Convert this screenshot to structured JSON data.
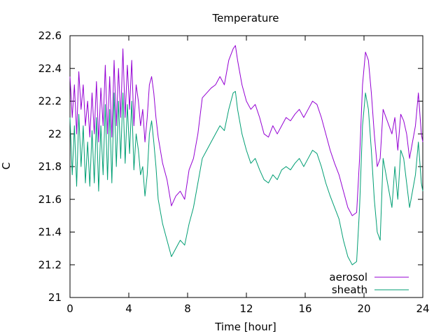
{
  "chart_data": {
    "type": "line",
    "title": "Temperature",
    "xlabel": "Time [hour]",
    "ylabel": "C",
    "xlim": [
      0,
      24
    ],
    "ylim": [
      21,
      22.6
    ],
    "x_ticks": [
      0,
      4,
      8,
      12,
      16,
      20,
      24
    ],
    "y_ticks": [
      21,
      21.2,
      21.4,
      21.6,
      21.8,
      22,
      22.2,
      22.4,
      22.6
    ],
    "grid": false,
    "legend_position": "bottom-right",
    "series": [
      {
        "name": "aerosol",
        "color": "#9400d3",
        "x": [
          0.0,
          0.15,
          0.3,
          0.45,
          0.6,
          0.75,
          0.9,
          1.05,
          1.2,
          1.35,
          1.5,
          1.65,
          1.8,
          1.95,
          2.1,
          2.25,
          2.4,
          2.55,
          2.7,
          2.85,
          3.0,
          3.15,
          3.3,
          3.45,
          3.6,
          3.75,
          3.9,
          4.05,
          4.2,
          4.35,
          4.5,
          4.65,
          4.8,
          4.95,
          5.1,
          5.25,
          5.4,
          5.55,
          5.7,
          5.85,
          6.0,
          6.3,
          6.6,
          6.9,
          7.2,
          7.5,
          7.8,
          8.1,
          8.4,
          8.7,
          9.0,
          9.3,
          9.6,
          9.9,
          10.2,
          10.5,
          10.8,
          11.1,
          11.25,
          11.4,
          11.7,
          12.0,
          12.3,
          12.6,
          12.9,
          13.2,
          13.5,
          13.8,
          14.1,
          14.4,
          14.7,
          15.0,
          15.3,
          15.6,
          15.9,
          16.2,
          16.5,
          16.8,
          17.1,
          17.4,
          17.7,
          18.0,
          18.3,
          18.6,
          18.9,
          19.2,
          19.5,
          19.7,
          19.9,
          20.1,
          20.3,
          20.5,
          20.7,
          20.9,
          21.1,
          21.3,
          21.5,
          21.7,
          21.9,
          22.1,
          22.3,
          22.5,
          22.7,
          22.9,
          23.1,
          23.3,
          23.5,
          23.7,
          23.9,
          24.0
        ],
        "y": [
          22.35,
          22.1,
          22.3,
          22.0,
          22.38,
          22.15,
          22.3,
          22.05,
          22.2,
          21.98,
          22.25,
          22.0,
          22.32,
          21.95,
          22.28,
          22.05,
          22.42,
          22.0,
          22.35,
          21.98,
          22.45,
          22.05,
          22.4,
          22.1,
          22.52,
          22.1,
          22.42,
          22.15,
          22.45,
          22.05,
          22.3,
          22.2,
          22.05,
          22.15,
          21.95,
          22.1,
          22.3,
          22.35,
          22.25,
          22.1,
          21.98,
          21.82,
          21.72,
          21.56,
          21.62,
          21.65,
          21.6,
          21.78,
          21.85,
          22.0,
          22.22,
          22.25,
          22.28,
          22.3,
          22.35,
          22.3,
          22.45,
          22.52,
          22.54,
          22.45,
          22.3,
          22.2,
          22.15,
          22.18,
          22.1,
          22.0,
          21.98,
          22.05,
          22.0,
          22.05,
          22.1,
          22.08,
          22.12,
          22.15,
          22.1,
          22.15,
          22.2,
          22.18,
          22.1,
          22.0,
          21.9,
          21.82,
          21.75,
          21.65,
          21.55,
          21.5,
          21.52,
          21.85,
          22.3,
          22.5,
          22.45,
          22.25,
          22.0,
          21.8,
          21.85,
          22.15,
          22.1,
          22.05,
          22.0,
          22.1,
          21.9,
          22.12,
          22.08,
          22.0,
          21.85,
          21.95,
          22.05,
          22.25,
          22.0,
          21.95
        ],
        "label_note": ""
      },
      {
        "name": "sheath",
        "color": "#009e73",
        "x": [
          0.0,
          0.15,
          0.3,
          0.45,
          0.6,
          0.75,
          0.9,
          1.05,
          1.2,
          1.35,
          1.5,
          1.65,
          1.8,
          1.95,
          2.1,
          2.25,
          2.4,
          2.55,
          2.7,
          2.85,
          3.0,
          3.15,
          3.3,
          3.45,
          3.6,
          3.75,
          3.9,
          4.05,
          4.2,
          4.35,
          4.5,
          4.65,
          4.8,
          4.95,
          5.1,
          5.25,
          5.4,
          5.55,
          5.7,
          5.85,
          6.0,
          6.3,
          6.6,
          6.9,
          7.2,
          7.5,
          7.8,
          8.1,
          8.4,
          8.7,
          9.0,
          9.3,
          9.6,
          9.9,
          10.2,
          10.5,
          10.8,
          11.1,
          11.25,
          11.4,
          11.7,
          12.0,
          12.3,
          12.6,
          12.9,
          13.2,
          13.5,
          13.8,
          14.1,
          14.4,
          14.7,
          15.0,
          15.3,
          15.6,
          15.9,
          16.2,
          16.5,
          16.8,
          17.1,
          17.4,
          17.7,
          18.0,
          18.3,
          18.6,
          18.9,
          19.2,
          19.5,
          19.7,
          19.9,
          20.1,
          20.3,
          20.5,
          20.7,
          20.9,
          21.1,
          21.3,
          21.5,
          21.7,
          21.9,
          22.1,
          22.3,
          22.5,
          22.7,
          22.9,
          23.1,
          23.3,
          23.5,
          23.7,
          23.9,
          24.0
        ],
        "y": [
          22.1,
          21.75,
          22.05,
          21.68,
          22.12,
          21.8,
          22.05,
          21.7,
          21.95,
          21.68,
          22.02,
          21.7,
          22.1,
          21.65,
          22.05,
          21.75,
          22.18,
          21.72,
          22.15,
          21.7,
          22.25,
          21.8,
          22.2,
          21.85,
          22.25,
          21.82,
          22.18,
          21.88,
          22.2,
          21.78,
          22.0,
          21.9,
          21.75,
          21.8,
          21.62,
          21.75,
          22.0,
          22.08,
          21.95,
          21.8,
          21.6,
          21.45,
          21.35,
          21.25,
          21.3,
          21.35,
          21.32,
          21.45,
          21.55,
          21.7,
          21.85,
          21.9,
          21.95,
          22.0,
          22.05,
          22.02,
          22.15,
          22.25,
          22.26,
          22.15,
          22.0,
          21.9,
          21.82,
          21.85,
          21.78,
          21.72,
          21.7,
          21.75,
          21.72,
          21.78,
          21.8,
          21.78,
          21.82,
          21.85,
          21.8,
          21.85,
          21.9,
          21.88,
          21.8,
          21.7,
          21.62,
          21.55,
          21.48,
          21.35,
          21.25,
          21.2,
          21.22,
          21.55,
          22.05,
          22.25,
          22.15,
          21.9,
          21.6,
          21.4,
          21.35,
          21.85,
          21.75,
          21.65,
          21.55,
          21.8,
          21.6,
          21.9,
          21.85,
          21.7,
          21.55,
          21.65,
          21.75,
          21.95,
          21.7,
          21.65
        ],
        "label_note": ""
      }
    ]
  }
}
